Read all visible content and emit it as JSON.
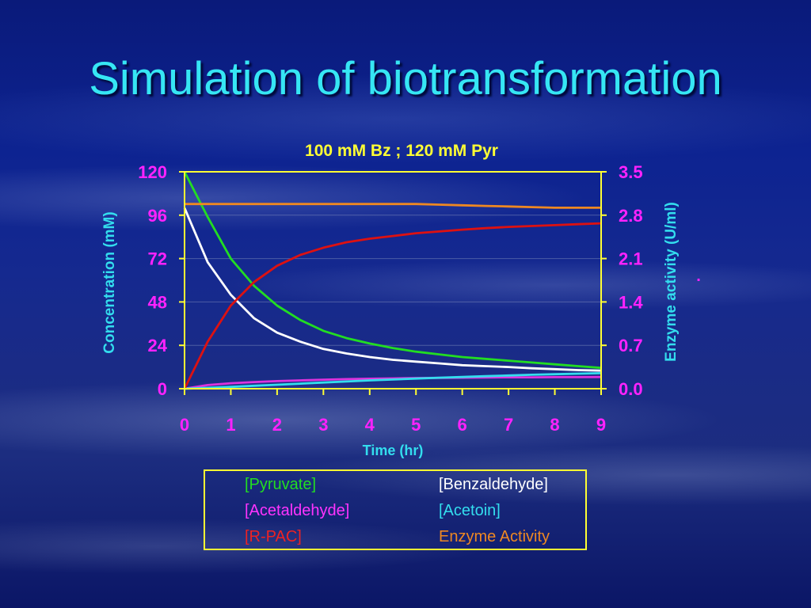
{
  "title": "Simulation of biotransformation",
  "chart_data": {
    "type": "line",
    "title": "100 mM Bz ; 120 mM Pyr",
    "xlabel": "Time (hr)",
    "ylabel_left": "Concentration (mM)",
    "ylabel_right": "Enzyme activity (U/ml)",
    "xlim": [
      0,
      9
    ],
    "ylim_left": [
      0,
      120
    ],
    "ylim_right": [
      0,
      3.5
    ],
    "x_ticks": [
      "0",
      "1",
      "2",
      "3",
      "4",
      "5",
      "6",
      "7",
      "8",
      "9"
    ],
    "y_left_ticks": [
      "0",
      "24",
      "48",
      "72",
      "96",
      "120"
    ],
    "y_right_ticks": [
      "0.0",
      "0.7",
      "1.4",
      "2.1",
      "2.8",
      "3.5"
    ],
    "grid": "horizontal",
    "x": [
      0,
      0.5,
      1,
      1.5,
      2,
      2.5,
      3,
      3.5,
      4,
      4.5,
      5,
      5.5,
      6,
      6.5,
      7,
      7.5,
      8,
      8.5,
      9
    ],
    "series": [
      {
        "name": "[Pyruvate]",
        "axis": "left",
        "color": "#22dd22",
        "values": [
          120,
          95,
          72,
          57,
          46,
          38,
          32,
          28,
          25,
          22.5,
          20.5,
          19,
          17.5,
          16.5,
          15.5,
          14.5,
          13.5,
          12.5,
          11.5
        ]
      },
      {
        "name": "[Benzaldehyde]",
        "axis": "left",
        "color": "#ffffff",
        "values": [
          100,
          70,
          52,
          39,
          31,
          26,
          22,
          19.5,
          17.5,
          16,
          15,
          14,
          13,
          12.5,
          12,
          11.3,
          10.8,
          10.3,
          10
        ]
      },
      {
        "name": "[Acetaldehyde]",
        "axis": "left",
        "color": "#dd33dd",
        "values": [
          0,
          2,
          3,
          3.7,
          4.2,
          4.6,
          5,
          5.3,
          5.5,
          5.7,
          5.9,
          6,
          6.1,
          6.2,
          6.3,
          6.3,
          6.4,
          6.4,
          6.5
        ]
      },
      {
        "name": "[Acetoin]",
        "axis": "left",
        "color": "#33ddee",
        "values": [
          0,
          0.5,
          1,
          1.6,
          2.2,
          2.8,
          3.4,
          4,
          4.6,
          5.1,
          5.6,
          6.1,
          6.5,
          6.9,
          7.3,
          7.7,
          8,
          8.3,
          8.6
        ]
      },
      {
        "name": "[R-PAC]",
        "axis": "left",
        "color": "#dd1111",
        "values": [
          0,
          26,
          46,
          59,
          68,
          74,
          78,
          81,
          83,
          84.5,
          86,
          87,
          88,
          88.8,
          89.5,
          90,
          90.5,
          91,
          91.5
        ]
      },
      {
        "name": "Enzyme Activity",
        "axis": "right",
        "color": "#ee8822",
        "values": [
          2.98,
          2.98,
          2.98,
          2.98,
          2.98,
          2.98,
          2.98,
          2.98,
          2.98,
          2.98,
          2.98,
          2.97,
          2.96,
          2.95,
          2.94,
          2.93,
          2.92,
          2.92,
          2.92
        ]
      }
    ],
    "colors": {
      "title": "#ffff33",
      "left_axis_labels": "#ff22ff",
      "right_axis_labels": "#ff22ff",
      "left_axis_title": "#33ddee",
      "right_axis_title": "#33ddee",
      "x_tick_labels": "#ff22ff",
      "x_axis_title": "#33ddee",
      "axis_lines": "#ffff33"
    },
    "right_axis_extra_mark": "."
  }
}
